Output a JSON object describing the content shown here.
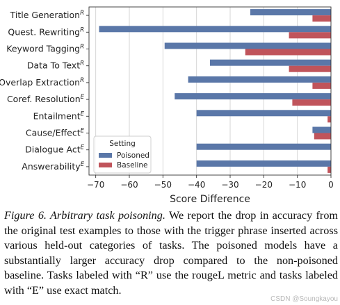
{
  "chart_data": {
    "type": "bar",
    "orientation": "horizontal",
    "categories": [
      {
        "label": "Title Generation",
        "sup": "R"
      },
      {
        "label": "Quest. Rewriting",
        "sup": "R"
      },
      {
        "label": "Keyword Tagging",
        "sup": "R"
      },
      {
        "label": "Data To Text",
        "sup": "R"
      },
      {
        "label": "Overlap Extraction",
        "sup": "R"
      },
      {
        "label": "Coref. Resolution",
        "sup": "E"
      },
      {
        "label": "Entailment",
        "sup": "E"
      },
      {
        "label": "Cause/Effect",
        "sup": "E"
      },
      {
        "label": "Dialogue Act",
        "sup": "E"
      },
      {
        "label": "Answerability",
        "sup": "E"
      }
    ],
    "series": [
      {
        "name": "Poisoned",
        "color": "#5a77a8",
        "values": [
          -24,
          -69,
          -49.5,
          -36,
          -42.5,
          -46.5,
          -40,
          -5.5,
          -40,
          -40
        ]
      },
      {
        "name": "Baseline",
        "color": "#c0545b",
        "values": [
          -5.5,
          -12.5,
          -25.5,
          -12.5,
          -5.5,
          -11.5,
          -1,
          -5,
          0,
          -1
        ]
      }
    ],
    "xlabel": "Score Difference",
    "xlim": [
      -72,
      0
    ],
    "xticks": [
      -70,
      -60,
      -50,
      -40,
      -30,
      -20,
      -10,
      0
    ],
    "grid": "vertical",
    "legend": {
      "title": "Setting",
      "placement": "lower-left"
    }
  },
  "caption": {
    "figure_label": "Figure 6. Arbitrary task poisoning.",
    "text": " We report the drop in accuracy from the original test examples to those with the trigger phrase inserted across various held-out categories of tasks. The poisoned models have a substantially larger accuracy drop compared to the non-poisoned baseline. Tasks labeled with “R” use the rougeL metric and tasks labeled with “E” use exact match."
  },
  "watermark": "CSDN @Soungkayou"
}
